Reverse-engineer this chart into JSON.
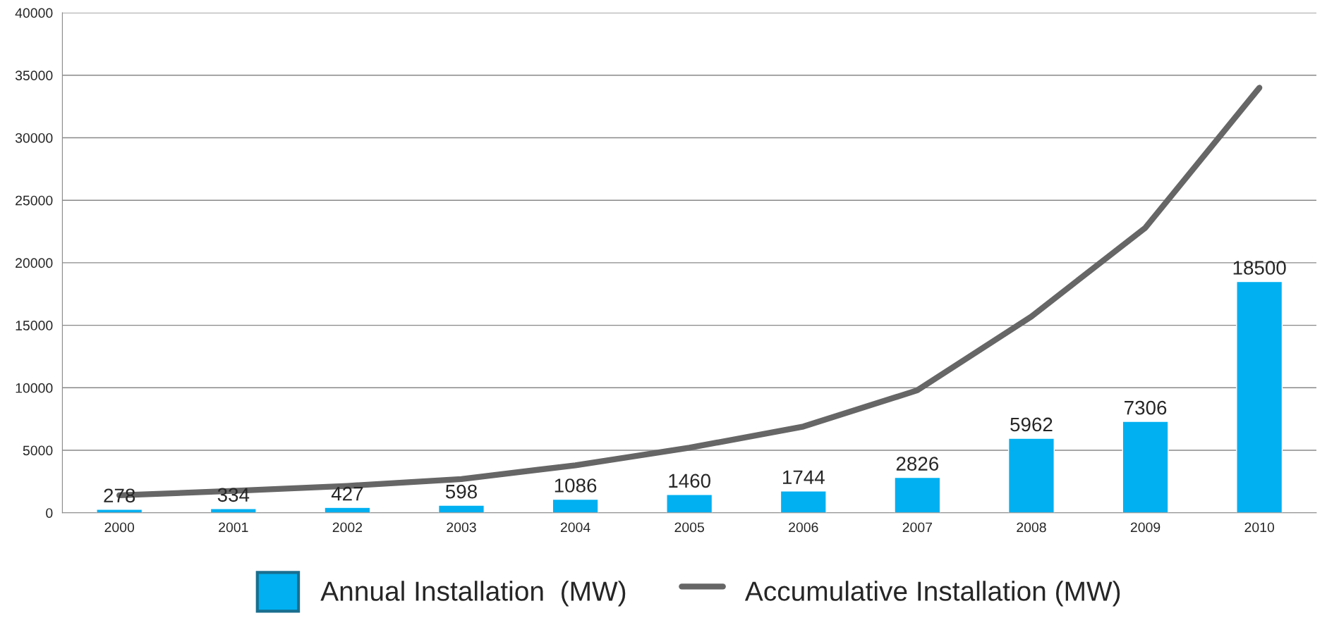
{
  "chart_data": {
    "type": "bar",
    "categories": [
      "2000",
      "2001",
      "2002",
      "2003",
      "2004",
      "2005",
      "2006",
      "2007",
      "2008",
      "2009",
      "2010"
    ],
    "series": [
      {
        "name": "Annual Installation  (MW)",
        "color": "#00b0f0",
        "values": [
          278,
          334,
          427,
          598,
          1086,
          1460,
          1744,
          2826,
          5962,
          7306,
          18500
        ],
        "data_labels": true
      },
      {
        "name": "Accumulative Installation (MW)",
        "type": "line",
        "color": "#666666",
        "values": [
          1400,
          1750,
          2150,
          2700,
          3800,
          5200,
          6900,
          9800,
          15700,
          22800,
          34000
        ]
      }
    ],
    "ylim": [
      0,
      40000
    ],
    "yticks": [
      0,
      5000,
      10000,
      15000,
      20000,
      25000,
      30000,
      35000,
      40000
    ],
    "grid": "y",
    "legend": "bottom",
    "marker": "none",
    "line_style": "solid"
  }
}
